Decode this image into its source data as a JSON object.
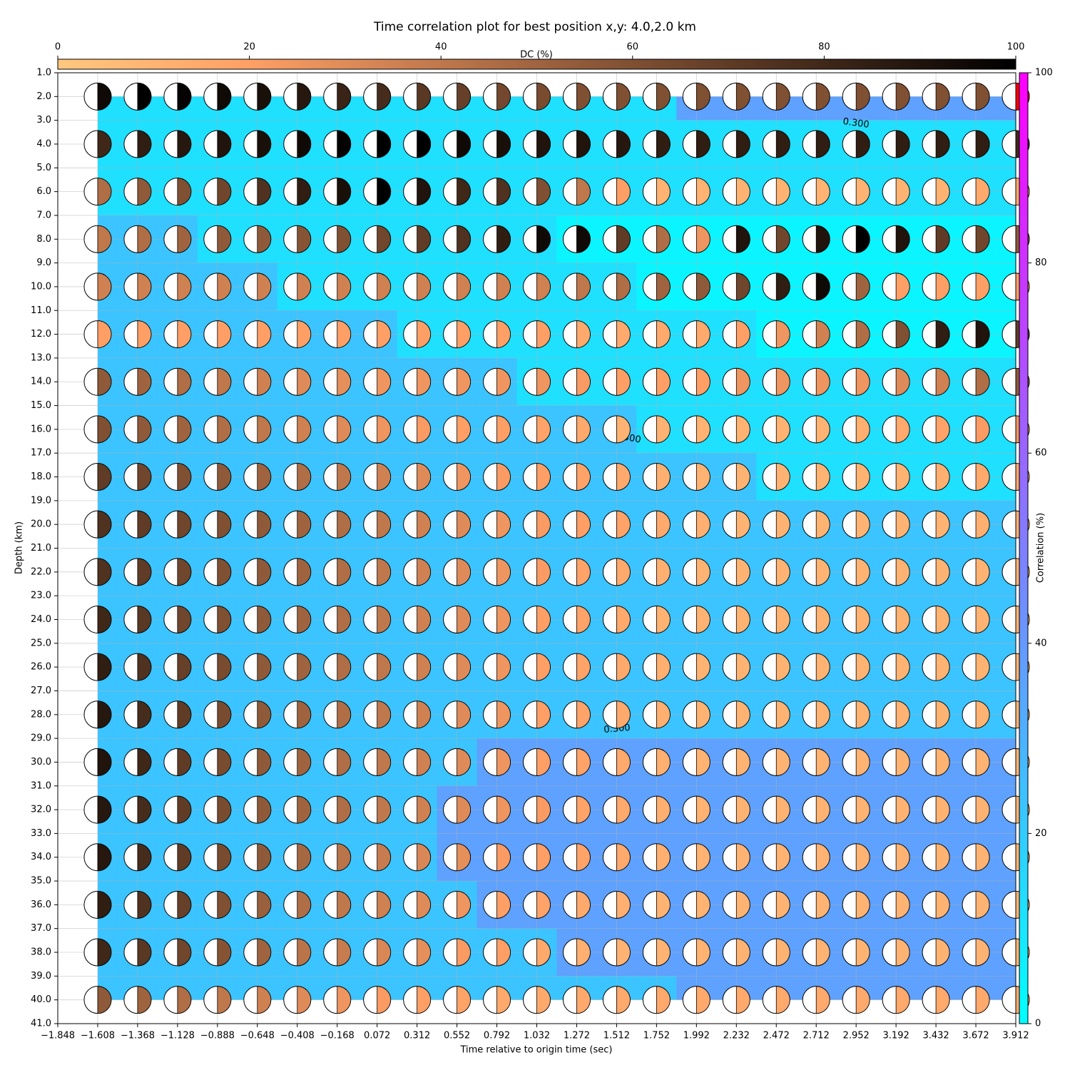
{
  "chart_data": {
    "type": "focal_mechanism_grid",
    "title": "Time correlation plot for best position x,y: 4.0,2.0 km",
    "xlabel": "Time relative to origin time (sec)",
    "ylabel": "Depth (km)",
    "xlim": [
      -1.848,
      3.912
    ],
    "ylim": [
      41,
      1
    ],
    "grid": true,
    "xticks": [
      {
        "value": -1.848,
        "label": "−1.848"
      },
      {
        "value": -1.608,
        "label": "−1.608"
      },
      {
        "value": -1.368,
        "label": "−1.368"
      },
      {
        "value": -1.128,
        "label": "−1.128"
      },
      {
        "value": -0.888,
        "label": "−0.888"
      },
      {
        "value": -0.648,
        "label": "−0.648"
      },
      {
        "value": -0.408,
        "label": "−0.408"
      },
      {
        "value": -0.168,
        "label": "−0.168"
      },
      0.072,
      0.312,
      0.552,
      0.792,
      1.032,
      1.272,
      1.512,
      1.752,
      1.992,
      2.232,
      2.472,
      2.712,
      2.952,
      3.192,
      3.432,
      3.672,
      3.912
    ],
    "yticks": [
      {
        "value": 1,
        "label": "1.0"
      },
      {
        "value": 2,
        "label": "2.0"
      },
      {
        "value": 3,
        "label": "3.0"
      },
      {
        "value": 4,
        "label": "4.0"
      },
      {
        "value": 5,
        "label": "5.0"
      },
      {
        "value": 6,
        "label": "6.0"
      },
      {
        "value": 7,
        "label": "7.0"
      },
      {
        "value": 8,
        "label": "8.0"
      },
      {
        "value": 9,
        "label": "9.0"
      },
      {
        "value": 10,
        "label": "10.0"
      },
      {
        "value": 11,
        "label": "11.0"
      },
      {
        "value": 12,
        "label": "12.0"
      },
      {
        "value": 13,
        "label": "13.0"
      },
      {
        "value": 14,
        "label": "14.0"
      },
      {
        "value": 15,
        "label": "15.0"
      },
      {
        "value": 16,
        "label": "16.0"
      },
      {
        "value": 17,
        "label": "17.0"
      },
      {
        "value": 18,
        "label": "18.0"
      },
      {
        "value": 19,
        "label": "19.0"
      },
      {
        "value": 20,
        "label": "20.0"
      },
      {
        "value": 21,
        "label": "21.0"
      },
      {
        "value": 22,
        "label": "22.0"
      },
      {
        "value": 23,
        "label": "23.0"
      },
      {
        "value": 24,
        "label": "24.0"
      },
      {
        "value": 25,
        "label": "25.0"
      },
      {
        "value": 26,
        "label": "26.0"
      },
      {
        "value": 27,
        "label": "27.0"
      },
      {
        "value": 28,
        "label": "28.0"
      },
      {
        "value": 29,
        "label": "29.0"
      },
      {
        "value": 30,
        "label": "30.0"
      },
      {
        "value": 31,
        "label": "31.0"
      },
      {
        "value": 32,
        "label": "32.0"
      },
      {
        "value": 33,
        "label": "33.0"
      },
      {
        "value": 34,
        "label": "34.0"
      },
      {
        "value": 35,
        "label": "35.0"
      },
      {
        "value": 36,
        "label": "36.0"
      },
      {
        "value": 37,
        "label": "37.0"
      },
      {
        "value": 38,
        "label": "38.0"
      },
      {
        "value": 39,
        "label": "39.0"
      },
      {
        "value": 40,
        "label": "40.0"
      },
      {
        "value": 41,
        "label": "41.0"
      }
    ],
    "times": [
      -1.608,
      -1.368,
      -1.128,
      -0.888,
      -0.648,
      -0.408,
      -0.168,
      0.072,
      0.312,
      0.552,
      0.792,
      1.032,
      1.272,
      1.512,
      1.752,
      1.992,
      2.232,
      2.472,
      2.712,
      2.952,
      3.192,
      3.432,
      3.672,
      3.912
    ],
    "depths": [
      2,
      4,
      6,
      8,
      10,
      12,
      14,
      16,
      18,
      20,
      22,
      24,
      26,
      28,
      30,
      32,
      34,
      36,
      38,
      40
    ],
    "dc": [
      [
        95,
        100,
        98,
        95,
        92,
        88,
        82,
        78,
        72,
        68,
        64,
        62,
        60,
        60,
        60,
        60,
        60,
        60,
        60,
        60,
        60,
        60,
        60,
        60
      ],
      [
        80,
        85,
        88,
        90,
        92,
        95,
        98,
        100,
        100,
        95,
        92,
        90,
        90,
        88,
        85,
        85,
        85,
        85,
        85,
        85,
        85,
        85,
        85,
        80
      ],
      [
        45,
        55,
        60,
        65,
        75,
        85,
        92,
        100,
        90,
        80,
        75,
        60,
        40,
        20,
        10,
        10,
        10,
        10,
        10,
        10,
        10,
        10,
        15,
        15
      ],
      [
        40,
        45,
        50,
        55,
        55,
        58,
        60,
        65,
        70,
        75,
        85,
        95,
        95,
        70,
        45,
        25,
        90,
        65,
        90,
        100,
        90,
        70,
        65,
        55
      ],
      [
        35,
        35,
        35,
        35,
        35,
        35,
        35,
        35,
        35,
        35,
        35,
        35,
        40,
        45,
        50,
        55,
        65,
        85,
        95,
        50,
        20,
        20,
        20,
        20
      ],
      [
        20,
        20,
        20,
        20,
        20,
        20,
        20,
        20,
        20,
        20,
        20,
        20,
        15,
        15,
        15,
        15,
        20,
        25,
        35,
        45,
        60,
        85,
        90,
        70
      ],
      [
        55,
        50,
        45,
        40,
        35,
        30,
        28,
        25,
        25,
        25,
        25,
        25,
        22,
        20,
        20,
        20,
        25,
        25,
        25,
        25,
        30,
        35,
        45,
        55
      ],
      [
        60,
        55,
        50,
        45,
        40,
        35,
        30,
        25,
        22,
        20,
        20,
        18,
        15,
        10,
        10,
        10,
        10,
        10,
        10,
        12,
        15,
        18,
        22,
        25
      ],
      [
        70,
        65,
        60,
        55,
        50,
        45,
        40,
        35,
        30,
        25,
        22,
        20,
        18,
        15,
        12,
        10,
        10,
        10,
        10,
        10,
        10,
        12,
        15,
        15
      ],
      [
        75,
        70,
        65,
        60,
        55,
        50,
        45,
        40,
        35,
        30,
        25,
        22,
        20,
        18,
        15,
        12,
        10,
        10,
        10,
        10,
        10,
        10,
        12,
        12
      ],
      [
        75,
        70,
        65,
        60,
        55,
        50,
        45,
        40,
        35,
        30,
        25,
        22,
        18,
        15,
        12,
        10,
        10,
        10,
        10,
        10,
        10,
        10,
        10,
        10
      ],
      [
        80,
        72,
        65,
        60,
        55,
        50,
        45,
        40,
        35,
        30,
        25,
        20,
        18,
        15,
        10,
        10,
        10,
        10,
        10,
        10,
        10,
        10,
        10,
        10
      ],
      [
        85,
        75,
        68,
        62,
        55,
        50,
        45,
        40,
        35,
        30,
        25,
        20,
        18,
        15,
        12,
        10,
        10,
        10,
        10,
        10,
        10,
        10,
        10,
        10
      ],
      [
        88,
        78,
        70,
        62,
        55,
        50,
        45,
        40,
        35,
        30,
        25,
        20,
        18,
        15,
        12,
        10,
        10,
        10,
        10,
        10,
        10,
        10,
        10,
        10
      ],
      [
        90,
        80,
        70,
        62,
        55,
        50,
        45,
        40,
        35,
        30,
        25,
        20,
        18,
        15,
        12,
        10,
        10,
        10,
        10,
        10,
        10,
        10,
        10,
        10
      ],
      [
        88,
        78,
        70,
        62,
        55,
        50,
        45,
        40,
        35,
        30,
        25,
        22,
        18,
        15,
        12,
        10,
        10,
        10,
        10,
        10,
        10,
        10,
        10,
        10
      ],
      [
        88,
        78,
        70,
        62,
        55,
        48,
        42,
        38,
        32,
        28,
        22,
        20,
        18,
        15,
        12,
        10,
        10,
        10,
        10,
        10,
        10,
        10,
        10,
        10
      ],
      [
        85,
        75,
        68,
        60,
        52,
        45,
        40,
        35,
        30,
        25,
        20,
        18,
        15,
        12,
        10,
        10,
        10,
        10,
        10,
        10,
        10,
        10,
        10,
        10
      ],
      [
        80,
        72,
        65,
        58,
        50,
        42,
        38,
        32,
        28,
        22,
        20,
        15,
        12,
        10,
        10,
        10,
        10,
        10,
        10,
        10,
        10,
        10,
        10,
        10
      ],
      [
        55,
        50,
        45,
        40,
        35,
        30,
        25,
        22,
        20,
        18,
        15,
        15,
        15,
        15,
        15,
        15,
        15,
        15,
        15,
        15,
        15,
        15,
        15,
        15
      ]
    ],
    "correlation": [
      [
        12,
        12,
        12,
        12,
        12,
        12,
        12,
        12,
        12,
        12,
        12,
        12,
        12,
        12,
        12,
        37,
        37,
        37,
        37,
        37,
        37,
        37,
        37,
        37
      ],
      [
        12,
        12,
        12,
        12,
        12,
        12,
        12,
        12,
        12,
        12,
        12,
        12,
        12,
        12,
        12,
        12,
        12,
        12,
        12,
        12,
        12,
        12,
        12,
        12
      ],
      [
        12,
        12,
        12,
        12,
        12,
        12,
        12,
        12,
        12,
        12,
        12,
        12,
        12,
        12,
        12,
        12,
        12,
        12,
        12,
        12,
        12,
        12,
        12,
        12
      ],
      [
        23,
        23,
        23,
        12,
        12,
        12,
        12,
        12,
        12,
        12,
        12,
        12,
        4,
        4,
        4,
        4,
        4,
        4,
        4,
        4,
        4,
        4,
        4,
        4
      ],
      [
        23,
        23,
        23,
        23,
        23,
        12,
        12,
        12,
        12,
        12,
        12,
        12,
        12,
        12,
        4,
        4,
        4,
        4,
        4,
        4,
        4,
        4,
        4,
        4
      ],
      [
        23,
        23,
        23,
        23,
        23,
        23,
        23,
        23,
        12,
        12,
        12,
        12,
        12,
        12,
        12,
        12,
        12,
        4,
        4,
        4,
        4,
        4,
        4,
        4
      ],
      [
        23,
        23,
        23,
        23,
        23,
        23,
        23,
        23,
        23,
        23,
        23,
        12,
        12,
        12,
        12,
        12,
        12,
        12,
        12,
        12,
        12,
        12,
        12,
        12
      ],
      [
        23,
        23,
        23,
        23,
        23,
        23,
        23,
        23,
        23,
        23,
        23,
        23,
        23,
        23,
        12,
        12,
        12,
        12,
        12,
        12,
        12,
        12,
        12,
        12
      ],
      [
        23,
        23,
        23,
        23,
        23,
        23,
        23,
        23,
        23,
        23,
        23,
        23,
        23,
        23,
        23,
        23,
        23,
        12,
        12,
        12,
        12,
        12,
        12,
        12
      ],
      [
        23,
        23,
        23,
        23,
        23,
        23,
        23,
        23,
        23,
        23,
        23,
        23,
        23,
        23,
        23,
        23,
        23,
        23,
        23,
        23,
        23,
        23,
        23,
        23
      ],
      [
        23,
        23,
        23,
        23,
        23,
        23,
        23,
        23,
        23,
        23,
        23,
        23,
        23,
        23,
        23,
        23,
        23,
        23,
        23,
        23,
        23,
        23,
        23,
        23
      ],
      [
        23,
        23,
        23,
        23,
        23,
        23,
        23,
        23,
        23,
        23,
        23,
        23,
        23,
        23,
        23,
        23,
        23,
        23,
        23,
        23,
        23,
        23,
        23,
        23
      ],
      [
        23,
        23,
        23,
        23,
        23,
        23,
        23,
        23,
        23,
        23,
        23,
        23,
        23,
        23,
        23,
        23,
        23,
        23,
        23,
        23,
        23,
        23,
        23,
        23
      ],
      [
        23,
        23,
        23,
        23,
        23,
        23,
        23,
        23,
        23,
        23,
        23,
        23,
        23,
        23,
        23,
        23,
        23,
        23,
        23,
        23,
        23,
        23,
        23,
        23
      ],
      [
        23,
        23,
        23,
        23,
        23,
        23,
        23,
        23,
        23,
        23,
        37,
        37,
        37,
        37,
        37,
        37,
        37,
        37,
        37,
        37,
        37,
        37,
        37,
        37
      ],
      [
        23,
        23,
        23,
        23,
        23,
        23,
        23,
        23,
        23,
        37,
        37,
        37,
        37,
        37,
        37,
        37,
        37,
        37,
        37,
        37,
        37,
        37,
        37,
        37
      ],
      [
        23,
        23,
        23,
        23,
        23,
        23,
        23,
        23,
        23,
        37,
        37,
        37,
        37,
        37,
        37,
        37,
        37,
        37,
        37,
        37,
        37,
        37,
        37,
        37
      ],
      [
        23,
        23,
        23,
        23,
        23,
        23,
        23,
        23,
        23,
        23,
        37,
        37,
        37,
        37,
        37,
        37,
        37,
        37,
        37,
        37,
        37,
        37,
        37,
        37
      ],
      [
        23,
        23,
        23,
        23,
        23,
        23,
        23,
        23,
        23,
        23,
        23,
        23,
        37,
        37,
        37,
        37,
        37,
        37,
        37,
        37,
        37,
        37,
        37,
        37
      ],
      [
        23,
        23,
        23,
        23,
        23,
        23,
        23,
        23,
        23,
        23,
        23,
        23,
        23,
        23,
        23,
        37,
        37,
        37,
        37,
        37,
        37,
        37,
        37,
        37
      ]
    ],
    "contour_label": "0.300",
    "best_time": 3.912,
    "best_depth": 2,
    "best_color": "#ff0000",
    "dc_colorbar": {
      "label": "DC (%)",
      "lim": [
        0,
        100
      ],
      "ticks": [
        0,
        20,
        40,
        60,
        80,
        100
      ]
    },
    "corr_colorbar": {
      "label": "Correlation (%)",
      "lim": [
        0,
        100
      ],
      "ticks": [
        0,
        20,
        40,
        60,
        80,
        100
      ]
    }
  }
}
